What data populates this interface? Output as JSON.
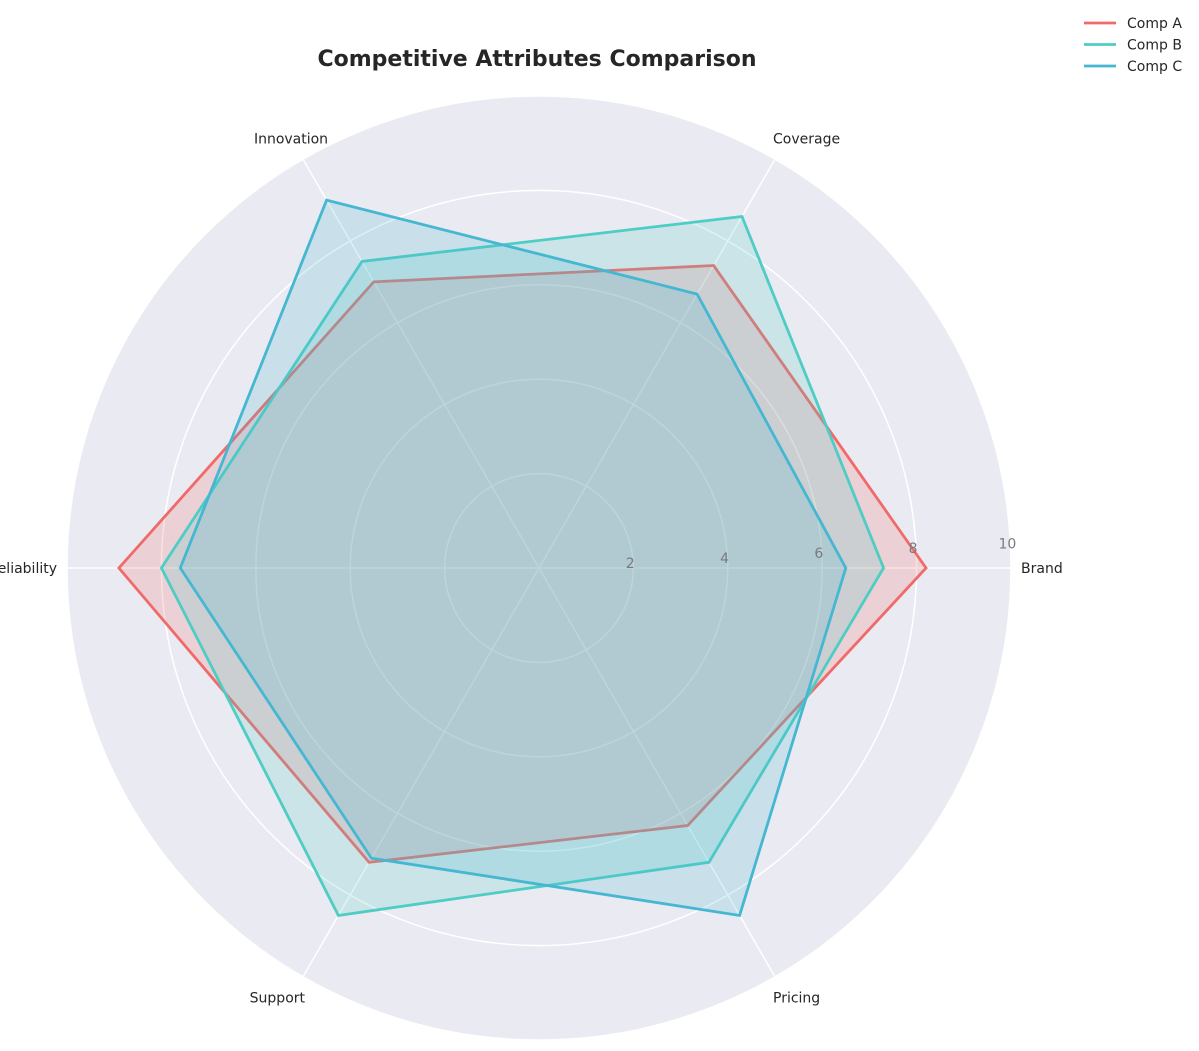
{
  "chart_data": {
    "type": "radar",
    "title": "Competitive Attributes Comparison",
    "categories": [
      "Brand",
      "Coverage",
      "Innovation",
      "Reliability",
      "Support",
      "Pricing"
    ],
    "rlim": [
      0,
      10
    ],
    "rticks": [
      2,
      4,
      6,
      8,
      10
    ],
    "series": [
      {
        "name": "Comp A",
        "color": "#f06a6a",
        "values": [
          8.2,
          7.4,
          7.0,
          8.9,
          7.2,
          6.3
        ]
      },
      {
        "name": "Comp B",
        "color": "#4ecdc4",
        "values": [
          7.3,
          8.6,
          7.5,
          8.0,
          8.5,
          7.2
        ]
      },
      {
        "name": "Comp C",
        "color": "#45b7d1",
        "values": [
          6.5,
          6.7,
          9.0,
          7.6,
          7.1,
          8.5
        ]
      }
    ],
    "grid": true,
    "legend_position": "top-right",
    "background_color": "#eaeaf2",
    "grid_color": "#ffffff"
  }
}
